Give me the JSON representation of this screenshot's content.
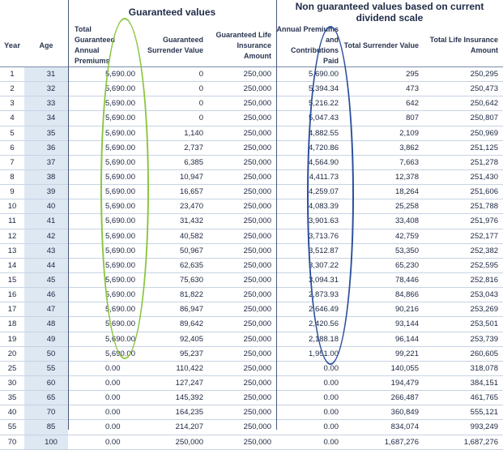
{
  "groups": {
    "guaranteed": "Guaranteed values",
    "non_guaranteed": "Non guaranteed values based on current dividend scale"
  },
  "headers": {
    "year": "Year",
    "age": "Age",
    "annual_premium": "Total Guaranteed Annual Premiums",
    "guaranteed_surrender": "Guaranteed Surrender Value",
    "guaranteed_life": "Guaranteed Life Insurance Amount",
    "annual_premiums_contributions": "Annual Premiums and Contributions Paid",
    "total_surrender": "Total Surrender Value",
    "total_life": "Total Life Insurance Amount"
  },
  "rows": [
    [
      "1",
      "31",
      "5,690.00",
      "0",
      "250,000",
      "5,690.00",
      "295",
      "250,295"
    ],
    [
      "2",
      "32",
      "5,690.00",
      "0",
      "250,000",
      "5,394.34",
      "473",
      "250,473"
    ],
    [
      "3",
      "33",
      "5,690.00",
      "0",
      "250,000",
      "5,216.22",
      "642",
      "250,642"
    ],
    [
      "4",
      "34",
      "5,690.00",
      "0",
      "250,000",
      "5,047.43",
      "807",
      "250,807"
    ],
    [
      "5",
      "35",
      "5,690.00",
      "1,140",
      "250,000",
      "4,882.55",
      "2,109",
      "250,969"
    ],
    [
      "6",
      "36",
      "5,690.00",
      "2,737",
      "250,000",
      "4,720.86",
      "3,862",
      "251,125"
    ],
    [
      "7",
      "37",
      "5,690.00",
      "6,385",
      "250,000",
      "4,564.90",
      "7,663",
      "251,278"
    ],
    [
      "8",
      "38",
      "5,690.00",
      "10,947",
      "250,000",
      "4,411.73",
      "12,378",
      "251,430"
    ],
    [
      "9",
      "39",
      "5,690.00",
      "16,657",
      "250,000",
      "4,259.07",
      "18,264",
      "251,606"
    ],
    [
      "10",
      "40",
      "5,690.00",
      "23,470",
      "250,000",
      "4,083.39",
      "25,258",
      "251,788"
    ],
    [
      "11",
      "41",
      "5,690.00",
      "31,432",
      "250,000",
      "3,901.63",
      "33,408",
      "251,976"
    ],
    [
      "12",
      "42",
      "5,690.00",
      "40,582",
      "250,000",
      "3,713.76",
      "42,759",
      "252,177"
    ],
    [
      "13",
      "43",
      "5,690.00",
      "50,967",
      "250,000",
      "3,512.87",
      "53,350",
      "252,382"
    ],
    [
      "14",
      "44",
      "5,690.00",
      "62,635",
      "250,000",
      "3,307.22",
      "65,230",
      "252,595"
    ],
    [
      "15",
      "45",
      "5,690.00",
      "75,630",
      "250,000",
      "3,094.31",
      "78,446",
      "252,816"
    ],
    [
      "16",
      "46",
      "5,690.00",
      "81,822",
      "250,000",
      "2,873.93",
      "84,866",
      "253,043"
    ],
    [
      "17",
      "47",
      "5,690.00",
      "86,947",
      "250,000",
      "2,646.49",
      "90,216",
      "253,269"
    ],
    [
      "18",
      "48",
      "5,690.00",
      "89,642",
      "250,000",
      "2,420.56",
      "93,144",
      "253,501"
    ],
    [
      "19",
      "49",
      "5,690.00",
      "92,405",
      "250,000",
      "2,188.18",
      "96,144",
      "253,739"
    ],
    [
      "20",
      "50",
      "5,690.00",
      "95,237",
      "250,000",
      "1,951.00",
      "99,221",
      "260,605"
    ],
    [
      "25",
      "55",
      "0.00",
      "110,422",
      "250,000",
      "0.00",
      "140,055",
      "318,078"
    ],
    [
      "30",
      "60",
      "0.00",
      "127,247",
      "250,000",
      "0.00",
      "194,479",
      "384,151"
    ],
    [
      "35",
      "65",
      "0.00",
      "145,392",
      "250,000",
      "0.00",
      "266,487",
      "461,765"
    ],
    [
      "40",
      "70",
      "0.00",
      "164,235",
      "250,000",
      "0.00",
      "360,849",
      "555,121"
    ],
    [
      "55",
      "85",
      "0.00",
      "214,207",
      "250,000",
      "0.00",
      "834,074",
      "993,249"
    ],
    [
      "70",
      "100",
      "0.00",
      "250,000",
      "250,000",
      "0.00",
      "1,687,276",
      "1,687,276"
    ]
  ],
  "annotations": {
    "green_ellipse_color": "#8cc63f",
    "blue_ellipse_color": "#2b4f9c"
  }
}
